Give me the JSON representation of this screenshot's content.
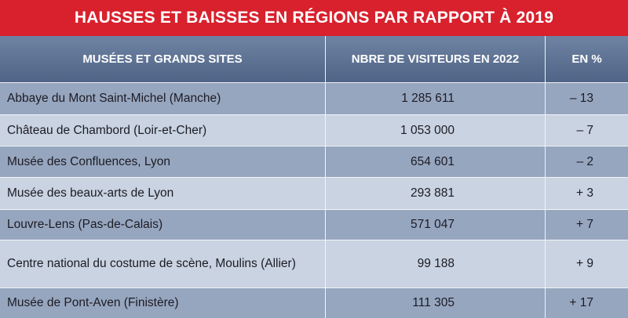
{
  "header": {
    "title": "HAUSSES ET BAISSES EN RÉGIONS PAR RAPPORT À 2019"
  },
  "table": {
    "columns": [
      "MUSÉES ET GRANDS SITES",
      "NBRE DE VISITEURS EN 2022",
      "EN %"
    ],
    "rows": [
      [
        "Abbaye du Mont Saint-Michel (Manche)",
        "1 285 611",
        "– 13"
      ],
      [
        "Château de Chambord (Loir-et-Cher)",
        "1 053 000",
        "– 7"
      ],
      [
        "Musée des Confluences, Lyon",
        "654 601",
        "– 2"
      ],
      [
        "Musée des beaux-arts de Lyon",
        "293 881",
        "+ 3"
      ],
      [
        "Louvre-Lens (Pas-de-Calais)",
        "571 047",
        "+ 7"
      ],
      [
        "Centre national du costume de scène, Moulins (Allier)",
        "99 188",
        "+ 9"
      ],
      [
        "Musée de Pont-Aven (Finistère)",
        "111 305",
        "+ 17"
      ]
    ]
  }
}
